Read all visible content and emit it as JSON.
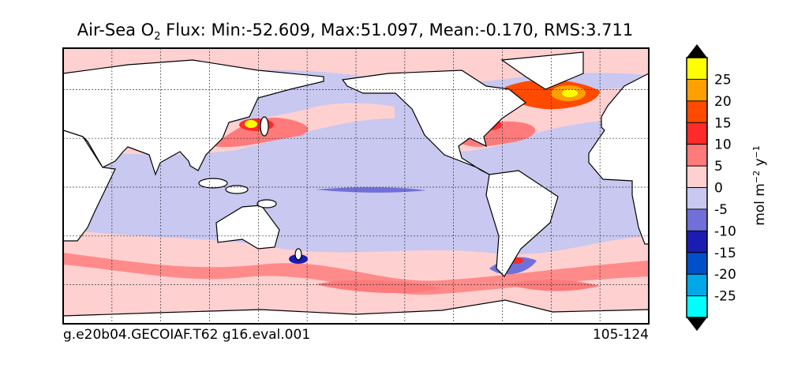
{
  "title": {
    "prefix": "Air-Sea O",
    "subscript": "2",
    "rest": " Flux: Min:-52.609, Max:51.097, Mean:-0.170, RMS:3.711"
  },
  "footer": {
    "left": "g.e20b04.GECOIAF.T62 g16.eval.001",
    "right": "105-124"
  },
  "colorbar": {
    "label": {
      "base": "mol m",
      "exp1": "−2",
      "mid": " y",
      "exp2": "−1"
    },
    "range": [
      -30,
      30
    ],
    "ticks": [
      -25,
      -20,
      -15,
      -10,
      -5,
      0,
      5,
      10,
      15,
      20,
      25
    ],
    "colors": [
      "#00ffff",
      "#00a8e8",
      "#0050c8",
      "#1c1cb0",
      "#7070d8",
      "#c8c8f0",
      "#ffd0d0",
      "#ff7a7a",
      "#ff2a2a",
      "#ff4a00",
      "#ffa000",
      "#ffff00"
    ],
    "extend_color": "#000000"
  }
}
